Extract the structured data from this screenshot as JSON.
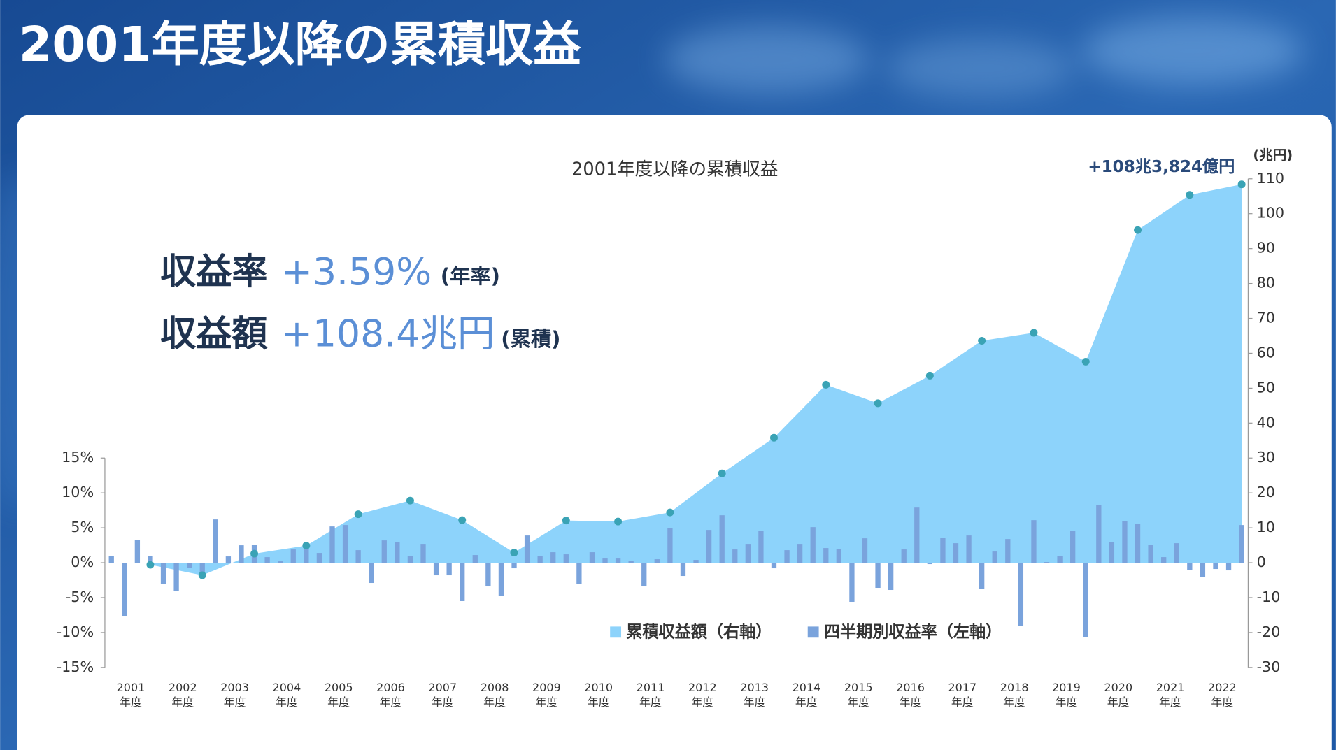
{
  "page_title": "2001年度以降の累積収益",
  "chart_data": {
    "type": "combo",
    "title": "2001年度以降の累積収益",
    "headline": {
      "rate_label": "収益率",
      "rate": "+3.59%",
      "rate_note": "(年率)",
      "amount_label": "収益額",
      "amount": "+108.4兆円",
      "amount_note": "(累積)"
    },
    "xlim": [
      2001,
      2023
    ],
    "xticks": [
      {
        "value": 2001.5,
        "label": "2001\n年度"
      },
      {
        "value": 2002.5,
        "label": "2002\n年度"
      },
      {
        "value": 2003.5,
        "label": "2003\n年度"
      },
      {
        "value": 2004.5,
        "label": "2004\n年度"
      },
      {
        "value": 2005.5,
        "label": "2005\n年度"
      },
      {
        "value": 2006.5,
        "label": "2006\n年度"
      },
      {
        "value": 2007.5,
        "label": "2007\n年度"
      },
      {
        "value": 2008.5,
        "label": "2008\n年度"
      },
      {
        "value": 2009.5,
        "label": "2009\n年度"
      },
      {
        "value": 2010.5,
        "label": "2010\n年度"
      },
      {
        "value": 2011.5,
        "label": "2011\n年度"
      },
      {
        "value": 2012.5,
        "label": "2012\n年度"
      },
      {
        "value": 2013.5,
        "label": "2013\n年度"
      },
      {
        "value": 2014.5,
        "label": "2014\n年度"
      },
      {
        "value": 2015.5,
        "label": "2015\n年度"
      },
      {
        "value": 2016.5,
        "label": "2016\n年度"
      },
      {
        "value": 2017.5,
        "label": "2017\n年度"
      },
      {
        "value": 2018.5,
        "label": "2018\n年度"
      },
      {
        "value": 2019.5,
        "label": "2019\n年度"
      },
      {
        "value": 2020.5,
        "label": "2020\n年度"
      },
      {
        "value": 2021.5,
        "label": "2021\n年度"
      },
      {
        "value": 2022.5,
        "label": "2022\n年度"
      }
    ],
    "ylim": [
      -15,
      15
    ],
    "yticks": [
      {
        "value": 15,
        "label": "15%"
      },
      {
        "value": 10,
        "label": "10%"
      },
      {
        "value": 5,
        "label": "5%"
      },
      {
        "value": 0,
        "label": "0%"
      },
      {
        "value": -5,
        "label": "-5%"
      },
      {
        "value": -10,
        "label": "-10%"
      },
      {
        "value": -15,
        "label": "-15%"
      }
    ],
    "y2lim": [
      -30,
      110
    ],
    "y2ticks": [
      110,
      100,
      90,
      80,
      70,
      60,
      50,
      40,
      30,
      20,
      10,
      0,
      -10,
      -20,
      -30
    ],
    "y2label": "(兆円)",
    "series": [
      {
        "name": "累積収益額（右軸）",
        "type": "area",
        "axis": "y2",
        "color": "#8dd3fb",
        "marker_color": "#3aa3b5",
        "end_label": "+108兆3,824億円",
        "x": [
          2001.875,
          2002.875,
          2003.875,
          2004.875,
          2005.875,
          2006.875,
          2007.875,
          2008.875,
          2009.875,
          2010.875,
          2011.875,
          2012.875,
          2013.875,
          2014.875,
          2015.875,
          2016.875,
          2017.875,
          2018.875,
          2019.875,
          2020.875,
          2021.875,
          2022.875
        ],
        "values": [
          -0.6,
          -3.6,
          2.6,
          4.9,
          13.9,
          17.8,
          12.2,
          2.9,
          12.1,
          11.8,
          14.4,
          25.6,
          35.8,
          51.0,
          45.7,
          53.6,
          63.6,
          65.9,
          57.6,
          95.3,
          105.4,
          108.4
        ]
      },
      {
        "name": "四半期別収益率（左軸）",
        "type": "bar",
        "color": "#7aa3dc",
        "x": [
          2001.125,
          2001.375,
          2001.625,
          2001.875,
          2002.125,
          2002.375,
          2002.625,
          2002.875,
          2003.125,
          2003.375,
          2003.625,
          2003.875,
          2004.125,
          2004.375,
          2004.625,
          2004.875,
          2005.125,
          2005.375,
          2005.625,
          2005.875,
          2006.125,
          2006.375,
          2006.625,
          2006.875,
          2007.125,
          2007.375,
          2007.625,
          2007.875,
          2008.125,
          2008.375,
          2008.625,
          2008.875,
          2009.125,
          2009.375,
          2009.625,
          2009.875,
          2010.125,
          2010.375,
          2010.625,
          2010.875,
          2011.125,
          2011.375,
          2011.625,
          2011.875,
          2012.125,
          2012.375,
          2012.625,
          2012.875,
          2013.125,
          2013.375,
          2013.625,
          2013.875,
          2014.125,
          2014.375,
          2014.625,
          2014.875,
          2015.125,
          2015.375,
          2015.625,
          2015.875,
          2016.125,
          2016.375,
          2016.625,
          2016.875,
          2017.125,
          2017.375,
          2017.625,
          2017.875,
          2018.125,
          2018.375,
          2018.625,
          2018.875,
          2019.125,
          2019.375,
          2019.625,
          2019.875,
          2020.125,
          2020.375,
          2020.625,
          2020.875,
          2021.125,
          2021.375,
          2021.625,
          2021.875,
          2022.125,
          2022.375,
          2022.625,
          2022.875
        ],
        "values": [
          1.0,
          -7.7,
          3.3,
          1.0,
          -3.0,
          -4.1,
          -0.7,
          -1.5,
          6.2,
          0.9,
          2.5,
          2.6,
          0.8,
          0.2,
          1.9,
          2.1,
          1.4,
          5.2,
          5.4,
          1.8,
          -2.9,
          3.2,
          3.0,
          1.0,
          2.7,
          -1.8,
          -1.8,
          -5.5,
          1.1,
          -3.4,
          -4.7,
          -0.8,
          3.9,
          1.0,
          1.5,
          1.2,
          -3.0,
          1.5,
          0.6,
          0.6,
          0.3,
          -3.4,
          0.5,
          5.0,
          -1.9,
          0.4,
          4.7,
          6.8,
          1.9,
          2.7,
          4.6,
          -0.8,
          1.8,
          2.7,
          5.1,
          2.1,
          2.0,
          -5.6,
          3.5,
          -3.6,
          -3.9,
          1.9,
          7.9,
          -0.2,
          3.6,
          2.8,
          3.9,
          -3.7,
          1.6,
          3.4,
          -9.1,
          6.1,
          0.1,
          1.0,
          4.6,
          -10.7,
          8.3,
          3.0,
          6.0,
          5.6,
          2.6,
          0.8,
          2.8,
          -1.0,
          -2.0,
          -0.9,
          -1.1,
          5.4
        ]
      }
    ]
  }
}
